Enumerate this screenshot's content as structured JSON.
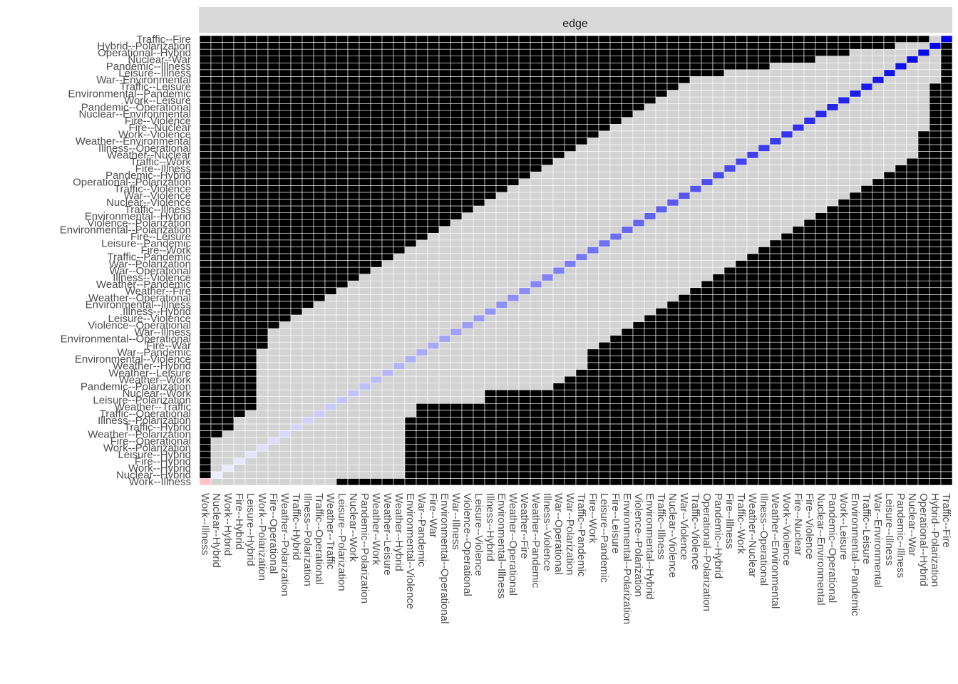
{
  "chart_data": {
    "type": "heatmap",
    "facet_label": "edge",
    "labels": [
      "Work--Illness",
      "Nuclear--Hybrid",
      "Work--Hybrid",
      "Fire--Hybrid",
      "Leisure--Hybrid",
      "Work--Polarization",
      "Fire--Operational",
      "Weather--Polarization",
      "Traffic--Hybrid",
      "Illness--Polarization",
      "Traffic--Operational",
      "Weather--Traffic",
      "Leisure--Polarization",
      "Nuclear--Work",
      "Pandemic--Polarization",
      "Weather--Work",
      "Weather--Leisure",
      "Weather--Hybrid",
      "Environmental--Violence",
      "War--Pandemic",
      "Fire--War",
      "Environmental--Operational",
      "War--Illness",
      "Violence--Operational",
      "Leisure--Violence",
      "Illness--Hybrid",
      "Environmental--Illness",
      "Weather--Operational",
      "Weather--Fire",
      "Weather--Pandemic",
      "Illness--Violence",
      "War--Operational",
      "War--Polarization",
      "Traffic--Pandemic",
      "Fire--Work",
      "Leisure--Pandemic",
      "Fire--Leisure",
      "Environmental--Polarization",
      "Violence--Polarization",
      "Environmental--Hybrid",
      "Traffic--Illness",
      "Nuclear--Violence",
      "War--Violence",
      "Traffic--Violence",
      "Operational--Polarization",
      "Pandemic--Hybrid",
      "Fire--Illness",
      "Traffic--Work",
      "Weather--Nuclear",
      "Illness--Operational",
      "Weather--Environmental",
      "Work--Violence",
      "Fire--Nuclear",
      "Fire--Violence",
      "Nuclear--Environmental",
      "Pandemic--Operational",
      "Work--Leisure",
      "Environmental--Pandemic",
      "Traffic--Leisure",
      "War--Environmental",
      "Leisure--Illness",
      "Pandemic--Illness",
      "Nuclear--War",
      "Operational--Hybrid",
      "Hybrid--Polarization",
      "Traffic--Fire"
    ],
    "value_range": [
      0,
      1
    ],
    "colors": {
      "high_black": "#000000",
      "low_grey": "#d3d3d3",
      "diag_low": "#f2f2ff",
      "diag_high": "#0000e6",
      "origin": "#ffc0cb",
      "panel_border": "#ffffff",
      "strip_fill": "#d9d9d9",
      "axis_text": "#4d4d4d",
      "strip_text": "#1a1a1a"
    },
    "grey_region_bounds": [
      [
        1,
        11
      ],
      [
        2,
        17
      ],
      [
        1,
        17
      ],
      [
        1,
        17
      ],
      [
        1,
        17
      ],
      [
        1,
        17
      ],
      [
        1,
        17
      ],
      [
        2,
        17
      ],
      [
        3,
        17
      ],
      [
        3,
        17
      ],
      [
        4,
        18
      ],
      [
        5,
        18
      ],
      [
        5,
        24
      ],
      [
        5,
        24
      ],
      [
        5,
        30
      ],
      [
        5,
        31
      ],
      [
        5,
        32
      ],
      [
        5,
        33
      ],
      [
        5,
        33
      ],
      [
        5,
        33
      ],
      [
        6,
        34
      ],
      [
        6,
        35
      ],
      [
        6,
        36
      ],
      [
        7,
        37
      ],
      [
        8,
        38
      ],
      [
        9,
        39
      ],
      [
        10,
        40
      ],
      [
        11,
        41
      ],
      [
        12,
        42
      ],
      [
        13,
        43
      ],
      [
        14,
        44
      ],
      [
        15,
        45
      ],
      [
        16,
        46
      ],
      [
        17,
        47
      ],
      [
        18,
        48
      ],
      [
        19,
        49
      ],
      [
        20,
        50
      ],
      [
        21,
        51
      ],
      [
        22,
        52
      ],
      [
        23,
        53
      ],
      [
        24,
        54
      ],
      [
        25,
        55
      ],
      [
        26,
        56
      ],
      [
        27,
        57
      ],
      [
        28,
        58
      ],
      [
        29,
        59
      ],
      [
        30,
        60
      ],
      [
        31,
        61
      ],
      [
        32,
        62
      ],
      [
        33,
        62
      ],
      [
        34,
        62
      ],
      [
        35,
        62
      ],
      [
        36,
        63
      ],
      [
        37,
        63
      ],
      [
        38,
        63
      ],
      [
        39,
        63
      ],
      [
        40,
        63
      ],
      [
        41,
        63
      ],
      [
        42,
        63
      ],
      [
        43,
        64
      ],
      [
        46,
        64
      ],
      [
        50,
        64
      ],
      [
        54,
        64
      ],
      [
        57,
        64
      ],
      [
        61,
        64
      ],
      [
        64,
        65
      ]
    ]
  }
}
